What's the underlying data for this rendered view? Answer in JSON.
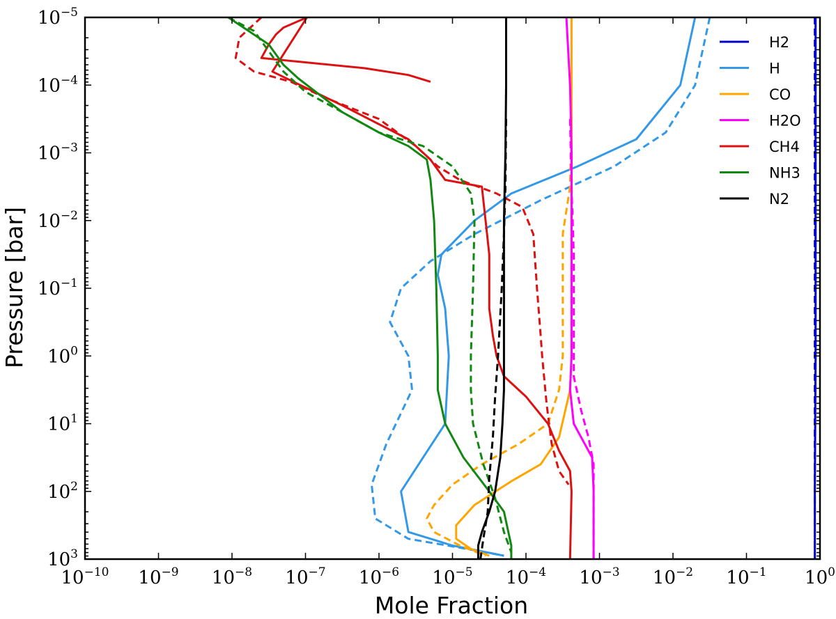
{
  "chart_data": {
    "type": "line",
    "title": "",
    "xlabel": "Mole Fraction",
    "ylabel": "Pressure [bar]",
    "xscale": "log",
    "yscale": "log",
    "xlim": [
      1e-10,
      1
    ],
    "ylim": [
      1000,
      1e-05
    ],
    "y_inverted": true,
    "grid": false,
    "legend_position": "top-right",
    "x_ticks": [
      {
        "base": "10",
        "exp": "−10"
      },
      {
        "base": "10",
        "exp": "−9"
      },
      {
        "base": "10",
        "exp": "−8"
      },
      {
        "base": "10",
        "exp": "−7"
      },
      {
        "base": "10",
        "exp": "−6"
      },
      {
        "base": "10",
        "exp": "−5"
      },
      {
        "base": "10",
        "exp": "−4"
      },
      {
        "base": "10",
        "exp": "−3"
      },
      {
        "base": "10",
        "exp": "−2"
      },
      {
        "base": "10",
        "exp": "−1"
      },
      {
        "base": "10",
        "exp": "0"
      }
    ],
    "y_ticks": [
      {
        "base": "10",
        "exp": "−5"
      },
      {
        "base": "10",
        "exp": "−4"
      },
      {
        "base": "10",
        "exp": "−3"
      },
      {
        "base": "10",
        "exp": "−2"
      },
      {
        "base": "10",
        "exp": "−1"
      },
      {
        "base": "10",
        "exp": "0"
      },
      {
        "base": "10",
        "exp": "1"
      },
      {
        "base": "10",
        "exp": "2"
      },
      {
        "base": "10",
        "exp": "3"
      }
    ],
    "series": [
      {
        "name": "H2",
        "color": "#0000cc",
        "style": "solid",
        "points": [
          [
            -0.06,
            -5
          ],
          [
            -0.06,
            0
          ],
          [
            -0.07,
            2
          ],
          [
            -0.07,
            3
          ]
        ]
      },
      {
        "name": "H2",
        "color": "#0000cc",
        "style": "dashed",
        "in_legend": false,
        "points": [
          [
            -0.07,
            -5
          ],
          [
            -0.07,
            3
          ]
        ]
      },
      {
        "name": "H",
        "color": "#3399e6",
        "style": "solid",
        "points": [
          [
            -1.7,
            -5
          ],
          [
            -1.9,
            -4
          ],
          [
            -2.5,
            -3.2
          ],
          [
            -3.3,
            -2.8
          ],
          [
            -4.2,
            -2.4
          ],
          [
            -4.7,
            -2
          ],
          [
            -5.15,
            -1.5
          ],
          [
            -5.2,
            -1.2
          ],
          [
            -5.1,
            -0.7
          ],
          [
            -5.05,
            0
          ],
          [
            -5.1,
            1
          ],
          [
            -5.4,
            1.5
          ],
          [
            -5.7,
            2
          ],
          [
            -5.6,
            2.6
          ],
          [
            -5.0,
            2.8
          ],
          [
            -4.3,
            2.95
          ]
        ]
      },
      {
        "name": "H",
        "color": "#3399e6",
        "style": "dashed",
        "in_legend": false,
        "points": [
          [
            -1.5,
            -5
          ],
          [
            -1.7,
            -4
          ],
          [
            -2.1,
            -3.3
          ],
          [
            -2.8,
            -2.8
          ],
          [
            -3.8,
            -2.3
          ],
          [
            -4.7,
            -1.8
          ],
          [
            -5.3,
            -1.4
          ],
          [
            -5.7,
            -1
          ],
          [
            -5.85,
            -0.5
          ],
          [
            -5.6,
            0
          ],
          [
            -5.55,
            0.5
          ],
          [
            -5.9,
            1.3
          ],
          [
            -6.1,
            1.9
          ],
          [
            -6.05,
            2.4
          ],
          [
            -5.6,
            2.7
          ],
          [
            -4.8,
            2.85
          ],
          [
            -4.3,
            2.95
          ]
        ]
      },
      {
        "name": "CO",
        "color": "#ffa500",
        "style": "solid",
        "points": [
          [
            -3.38,
            -5
          ],
          [
            -3.38,
            -3
          ],
          [
            -3.38,
            -2
          ],
          [
            -3.38,
            0
          ],
          [
            -3.4,
            0.5
          ],
          [
            -3.55,
            1.2
          ],
          [
            -3.8,
            1.6
          ],
          [
            -4.2,
            1.85
          ],
          [
            -4.7,
            2.2
          ],
          [
            -4.95,
            2.5
          ],
          [
            -4.95,
            2.7
          ],
          [
            -4.75,
            2.85
          ],
          [
            -4.5,
            2.95
          ]
        ]
      },
      {
        "name": "CO",
        "color": "#ffa500",
        "style": "dashed",
        "in_legend": false,
        "points": [
          [
            -3.38,
            -3.5
          ],
          [
            -3.4,
            -2.5
          ],
          [
            -3.5,
            -1.8
          ],
          [
            -3.5,
            -1
          ],
          [
            -3.5,
            0
          ],
          [
            -3.55,
            0.5
          ],
          [
            -3.7,
            1
          ],
          [
            -4.1,
            1.3
          ],
          [
            -4.6,
            1.6
          ],
          [
            -5.0,
            1.9
          ],
          [
            -5.25,
            2.2
          ],
          [
            -5.35,
            2.4
          ],
          [
            -5.25,
            2.6
          ],
          [
            -4.9,
            2.8
          ],
          [
            -4.55,
            2.95
          ]
        ]
      },
      {
        "name": "H2O",
        "color": "#ff00ff",
        "style": "solid",
        "points": [
          [
            -3.45,
            -5
          ],
          [
            -3.4,
            -4
          ],
          [
            -3.38,
            -3
          ],
          [
            -3.38,
            -2
          ],
          [
            -3.38,
            0
          ],
          [
            -3.4,
            0.5
          ],
          [
            -3.35,
            1
          ],
          [
            -3.2,
            1.3
          ],
          [
            -3.1,
            1.5
          ],
          [
            -3.08,
            2
          ],
          [
            -3.08,
            3
          ]
        ]
      },
      {
        "name": "H2O",
        "color": "#ff00ff",
        "style": "dashed",
        "in_legend": false,
        "points": [
          [
            -3.4,
            -3.5
          ],
          [
            -3.38,
            -2.5
          ],
          [
            -3.35,
            -1.5
          ],
          [
            -3.35,
            -0.5
          ],
          [
            -3.35,
            0.3
          ],
          [
            -3.25,
            0.8
          ],
          [
            -3.15,
            1.2
          ],
          [
            -3.08,
            1.6
          ],
          [
            -3.08,
            2
          ],
          [
            -3.08,
            3
          ]
        ]
      },
      {
        "name": "CH4",
        "color": "#dd1111",
        "style": "solid",
        "points": [
          [
            -5.3,
            -4.05
          ],
          [
            -5.6,
            -4.15
          ],
          [
            -6.2,
            -4.25
          ],
          [
            -7.6,
            -4.4
          ],
          [
            -7.5,
            -4.6
          ],
          [
            -7.4,
            -4.75
          ],
          [
            -7.3,
            -4.85
          ],
          [
            -6.98,
            -5
          ],
          [
            -7.45,
            -4.2
          ],
          [
            -6.5,
            -3.7
          ],
          [
            -5.6,
            -3.2
          ],
          [
            -5.3,
            -2.9
          ],
          [
            -5.1,
            -2.6
          ],
          [
            -4.6,
            -2.5
          ],
          [
            -4.55,
            -2
          ],
          [
            -4.5,
            -1.5
          ],
          [
            -4.5,
            -0.7
          ],
          [
            -4.45,
            -0.3
          ],
          [
            -4.4,
            0
          ],
          [
            -4.3,
            0.3
          ],
          [
            -4.0,
            0.6
          ],
          [
            -3.7,
            1
          ],
          [
            -3.55,
            1.4
          ],
          [
            -3.4,
            1.7
          ],
          [
            -3.38,
            2
          ],
          [
            -3.4,
            3
          ]
        ]
      },
      {
        "name": "CH4",
        "color": "#dd1111",
        "style": "dashed",
        "in_legend": false,
        "points": [
          [
            -7.6,
            -5
          ],
          [
            -7.9,
            -4.7
          ],
          [
            -7.95,
            -4.4
          ],
          [
            -7.7,
            -4.2
          ],
          [
            -7.2,
            -4.05
          ],
          [
            -6.7,
            -3.8
          ],
          [
            -6.0,
            -3.5
          ],
          [
            -5.5,
            -3.1
          ],
          [
            -5.2,
            -2.8
          ],
          [
            -4.9,
            -2.6
          ],
          [
            -4.4,
            -2.4
          ],
          [
            -4.05,
            -2.2
          ],
          [
            -3.9,
            -1.8
          ],
          [
            -3.85,
            -1
          ],
          [
            -3.8,
            -0.3
          ],
          [
            -3.78,
            0
          ],
          [
            -3.72,
            0.7
          ],
          [
            -3.65,
            1.3
          ],
          [
            -3.55,
            1.7
          ],
          [
            -3.42,
            1.9
          ]
        ]
      },
      {
        "name": "NH3",
        "color": "#118811",
        "style": "solid",
        "points": [
          [
            -8.05,
            -5
          ],
          [
            -7.5,
            -4.6
          ],
          [
            -7.3,
            -4.3
          ],
          [
            -7.1,
            -4.1
          ],
          [
            -6.5,
            -3.6
          ],
          [
            -6.0,
            -3.3
          ],
          [
            -5.6,
            -3.1
          ],
          [
            -5.35,
            -2.9
          ],
          [
            -5.3,
            -2.6
          ],
          [
            -5.25,
            -2
          ],
          [
            -5.22,
            -1
          ],
          [
            -5.2,
            0
          ],
          [
            -5.2,
            0.5
          ],
          [
            -5.1,
            1
          ],
          [
            -4.85,
            1.5
          ],
          [
            -4.5,
            2
          ],
          [
            -4.3,
            2.3
          ],
          [
            -4.2,
            2.8
          ],
          [
            -4.2,
            3
          ]
        ]
      },
      {
        "name": "NH3",
        "color": "#118811",
        "style": "dashed",
        "in_legend": false,
        "points": [
          [
            -8.05,
            -5
          ],
          [
            -7.7,
            -4.8
          ],
          [
            -7.5,
            -4.5
          ],
          [
            -7.3,
            -4.2
          ],
          [
            -7.0,
            -3.9
          ],
          [
            -6.5,
            -3.6
          ],
          [
            -6.0,
            -3.3
          ],
          [
            -5.4,
            -3.1
          ],
          [
            -5.0,
            -2.8
          ],
          [
            -4.75,
            -2.4
          ],
          [
            -4.7,
            -2
          ],
          [
            -4.72,
            -1
          ],
          [
            -4.75,
            0
          ],
          [
            -4.75,
            0.5
          ],
          [
            -4.72,
            1
          ],
          [
            -4.58,
            1.6
          ],
          [
            -4.42,
            2.1
          ],
          [
            -4.3,
            2.6
          ],
          [
            -4.2,
            2.9
          ]
        ]
      },
      {
        "name": "N2",
        "color": "#000000",
        "style": "solid",
        "points": [
          [
            -4.27,
            -5
          ],
          [
            -4.27,
            -4
          ],
          [
            -4.28,
            -3
          ],
          [
            -4.3,
            -2
          ],
          [
            -4.3,
            -1
          ],
          [
            -4.3,
            0
          ],
          [
            -4.3,
            0.5
          ],
          [
            -4.32,
            1
          ],
          [
            -4.35,
            1.5
          ],
          [
            -4.42,
            2
          ],
          [
            -4.5,
            2.3
          ],
          [
            -4.6,
            2.6
          ],
          [
            -4.65,
            2.8
          ],
          [
            -4.65,
            3
          ]
        ]
      },
      {
        "name": "N2",
        "color": "#000000",
        "style": "dashed",
        "in_legend": false,
        "points": [
          [
            -4.27,
            -3.5
          ],
          [
            -4.28,
            -2.5
          ],
          [
            -4.3,
            -1.8
          ],
          [
            -4.33,
            -1
          ],
          [
            -4.38,
            0
          ],
          [
            -4.42,
            0.6
          ],
          [
            -4.45,
            1.2
          ],
          [
            -4.5,
            1.8
          ],
          [
            -4.52,
            2.3
          ],
          [
            -4.58,
            2.7
          ],
          [
            -4.62,
            3
          ]
        ]
      }
    ]
  }
}
